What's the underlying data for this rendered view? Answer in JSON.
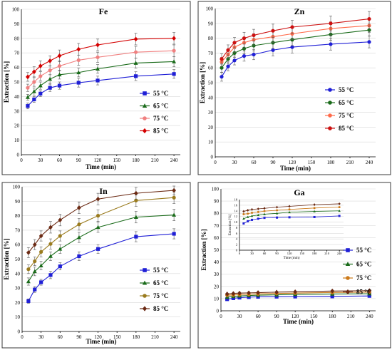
{
  "chart_data": [
    {
      "type": "line",
      "title": "Fe",
      "xlabel": "Time (min)",
      "ylabel": "Extraction [%]",
      "xlim": [
        0,
        250
      ],
      "ylim": [
        0,
        100
      ],
      "xticks": [
        0,
        30,
        60,
        90,
        120,
        150,
        180,
        210,
        240
      ],
      "yticks": [
        0,
        10,
        20,
        30,
        40,
        50,
        60,
        70,
        80,
        90,
        100
      ],
      "x": [
        10,
        20,
        30,
        45,
        60,
        90,
        120,
        180,
        240
      ],
      "legend_position": "right",
      "series": [
        {
          "name": "55 °C",
          "color": "#1f1fd6",
          "marker": "square",
          "values": [
            33.5,
            38,
            42,
            46,
            47.5,
            49.5,
            51,
            54,
            55.5
          ],
          "err": [
            2,
            2,
            2,
            2.5,
            2.5,
            3,
            3,
            3,
            3
          ]
        },
        {
          "name": "65 °C",
          "color": "#1a6b1a",
          "marker": "triangle",
          "values": [
            39.5,
            43.5,
            47.5,
            52,
            55,
            56.5,
            59,
            63,
            64
          ],
          "err": [
            2,
            2.5,
            2.5,
            3,
            3,
            3,
            3,
            3.5,
            3.5
          ]
        },
        {
          "name": "75 °C",
          "color": "#f08080",
          "marker": "circle",
          "values": [
            46,
            50,
            54,
            58,
            61,
            65,
            67,
            70.5,
            71.5
          ],
          "err": [
            2.5,
            3,
            3,
            3,
            3.5,
            3.5,
            3.5,
            4,
            4
          ]
        },
        {
          "name": "85 °C",
          "color": "#d40000",
          "marker": "diamond",
          "values": [
            53.5,
            57,
            61,
            64.5,
            68,
            72.5,
            75.5,
            79.5,
            80
          ],
          "err": [
            3,
            3.5,
            3.5,
            3.5,
            4,
            4,
            4,
            4,
            4
          ]
        }
      ]
    },
    {
      "type": "line",
      "title": "Zn",
      "xlabel": "Time (min)",
      "ylabel": "Extraction [%]",
      "xlim": [
        0,
        250
      ],
      "ylim": [
        0,
        100
      ],
      "xticks": [
        0,
        30,
        60,
        90,
        120,
        150,
        180,
        210,
        240
      ],
      "yticks": [
        0,
        10,
        20,
        30,
        40,
        50,
        60,
        70,
        80,
        90,
        100
      ],
      "x": [
        10,
        20,
        30,
        45,
        60,
        90,
        120,
        180,
        240
      ],
      "legend_position": "right",
      "series": [
        {
          "name": "55 °C",
          "color": "#1f1fd6",
          "marker": "circle",
          "values": [
            54,
            61,
            65,
            68,
            69,
            72,
            74,
            76,
            77.5
          ],
          "err": [
            3,
            3,
            3,
            3.5,
            3.5,
            4,
            4,
            4,
            4
          ]
        },
        {
          "name": "65 °C",
          "color": "#1a6b1a",
          "marker": "circle",
          "values": [
            60,
            66,
            70,
            73,
            75,
            77,
            79,
            82.5,
            85.5
          ],
          "err": [
            3,
            3,
            3,
            3.5,
            3.5,
            4,
            4,
            4,
            4
          ]
        },
        {
          "name": "75 °C",
          "color": "#ff6a4a",
          "marker": "circle",
          "values": [
            64,
            69,
            74,
            77,
            79,
            81,
            83,
            86.5,
            88.5
          ],
          "err": [
            3,
            3,
            3.5,
            3.5,
            4,
            4,
            4,
            4.5,
            4.5
          ]
        },
        {
          "name": "85 °C",
          "color": "#cc1010",
          "marker": "circle",
          "values": [
            66,
            72,
            77,
            80,
            82,
            85,
            87.5,
            90,
            93
          ],
          "err": [
            3.5,
            3.5,
            3.5,
            4,
            4,
            4.5,
            4.5,
            5,
            5
          ]
        }
      ]
    },
    {
      "type": "line",
      "title": "In",
      "xlabel": "Time (min)",
      "ylabel": "Extraction [%]",
      "xlim": [
        0,
        250
      ],
      "ylim": [
        0,
        100
      ],
      "xticks": [
        0,
        30,
        60,
        90,
        120,
        150,
        180,
        210,
        240
      ],
      "yticks": [
        0,
        10,
        20,
        30,
        40,
        50,
        60,
        70,
        80,
        90,
        100
      ],
      "x": [
        10,
        20,
        30,
        45,
        60,
        90,
        120,
        180,
        240
      ],
      "legend_position": "right",
      "series": [
        {
          "name": "55 °C",
          "color": "#1f1fd6",
          "marker": "square",
          "values": [
            21,
            29,
            34,
            39,
            45,
            52,
            57,
            65.5,
            67.5
          ],
          "err": [
            1.5,
            2,
            2,
            2.5,
            2.5,
            3,
            3,
            3.5,
            3.5
          ]
        },
        {
          "name": "65 °C",
          "color": "#1a6b1a",
          "marker": "triangle",
          "values": [
            34.5,
            41.5,
            45.5,
            52,
            57,
            65,
            72,
            79,
            80.5
          ],
          "err": [
            2.5,
            3,
            3,
            3,
            3,
            3.5,
            3.5,
            4,
            4
          ]
        },
        {
          "name": "75 °C",
          "color": "#9a7b1e",
          "marker": "circle",
          "values": [
            43,
            48.5,
            55,
            60.5,
            66,
            74,
            80,
            90.5,
            92.5
          ],
          "err": [
            3,
            3,
            3.5,
            3.5,
            3.5,
            4,
            4,
            4,
            4
          ]
        },
        {
          "name": "85 °C",
          "color": "#6b2a14",
          "marker": "diamond",
          "values": [
            54.5,
            60,
            66,
            72,
            77,
            85.5,
            91.5,
            95.5,
            97.5
          ],
          "err": [
            3.5,
            3.5,
            3.5,
            4,
            4,
            4,
            4,
            4,
            3
          ]
        }
      ]
    },
    {
      "type": "line",
      "title": "Ga",
      "xlabel": "Time (min)",
      "ylabel": "Extraction [%]",
      "xlim": [
        0,
        250
      ],
      "ylim": [
        0,
        100
      ],
      "xticks": [
        0,
        30,
        60,
        90,
        120,
        150,
        180,
        210,
        240
      ],
      "yticks": [
        0,
        10,
        20,
        30,
        40,
        50,
        60,
        70,
        80,
        90,
        100
      ],
      "x": [
        10,
        20,
        30,
        45,
        60,
        90,
        120,
        180,
        240
      ],
      "legend_position": "right",
      "series": [
        {
          "name": "55 °C",
          "color": "#1f1fd6",
          "marker": "square",
          "values": [
            9.5,
            10.3,
            10.8,
            11.2,
            11.5,
            11.6,
            11.7,
            11.8,
            12.2
          ]
        },
        {
          "name": "65 °C",
          "color": "#1a6b1a",
          "marker": "triangle",
          "values": [
            11.2,
            11.8,
            12.2,
            12.5,
            12.8,
            13.1,
            13.5,
            13.8,
            14.0
          ]
        },
        {
          "name": "75 °C",
          "color": "#cc7a1a",
          "marker": "circle",
          "values": [
            12.8,
            13.0,
            13.3,
            13.6,
            13.9,
            14.2,
            14.5,
            15.0,
            15.3
          ]
        },
        {
          "name": "85 °C",
          "color": "#6b2a14",
          "marker": "diamond",
          "values": [
            13.8,
            14.2,
            14.5,
            14.7,
            14.9,
            15.3,
            15.6,
            16.2,
            16.5
          ]
        }
      ],
      "inset": {
        "ylabel": "Extraction [%]",
        "xlabel": "Time (min)",
        "xlim": [
          0,
          250
        ],
        "ylim": [
          0,
          18
        ],
        "xticks": [
          0,
          30,
          60,
          90,
          120,
          150,
          180,
          210,
          240
        ],
        "yticks": [
          0,
          2,
          4,
          6,
          8,
          10,
          12,
          14,
          16,
          18
        ]
      }
    }
  ]
}
